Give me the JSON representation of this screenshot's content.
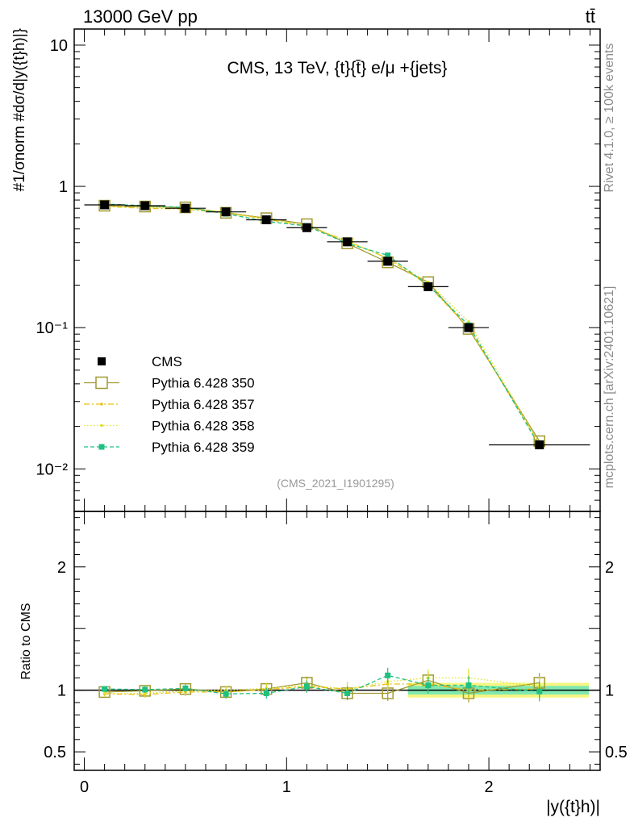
{
  "header": {
    "energy_label": "13000 GeV pp",
    "process_label": "tt̄"
  },
  "side_labels": {
    "rivet": "Rivet 4.1.0, ≥ 100k events",
    "mcplots": "mcplots.cern.ch [arXiv:2401.10621]"
  },
  "colors": {
    "data": "#000000",
    "p350": "#a09a30",
    "p357": "#e8c010",
    "p358": "#e0e020",
    "p359": "#20c080",
    "band_yellow": "#f6f680",
    "band_green": "#80e8b0"
  },
  "chart_data": [
    {
      "type": "scatter",
      "panel": "main",
      "title": "CMS, 13 TeV, {t}{t̄} e/μ +{jets}",
      "watermark": "(CMS_2021_I1901295)",
      "ylabel": "#1/σnorm #dσ/d|y({t}h)|}",
      "xlim": [
        -0.05,
        2.55
      ],
      "ylim": [
        0.005,
        13
      ],
      "yscale": "log",
      "y_ticks": [
        {
          "value": 0.01,
          "label": "10⁻²"
        },
        {
          "value": 0.1,
          "label": "10⁻¹"
        },
        {
          "value": 1,
          "label": "1"
        },
        {
          "value": 10,
          "label": "10"
        }
      ],
      "x": [
        0.1,
        0.3,
        0.5,
        0.7,
        0.9,
        1.1,
        1.3,
        1.5,
        1.7,
        1.9,
        2.25
      ],
      "x_halfwidth": [
        0.1,
        0.1,
        0.1,
        0.1,
        0.1,
        0.1,
        0.1,
        0.1,
        0.1,
        0.1,
        0.25
      ],
      "series": [
        {
          "name": "CMS",
          "key": "data",
          "style": "data",
          "values": [
            0.74,
            0.73,
            0.7,
            0.66,
            0.58,
            0.51,
            0.405,
            0.295,
            0.195,
            0.1,
            0.0148
          ]
        },
        {
          "name": "Pythia 6.428 350",
          "key": "p350",
          "style": "open-square",
          "values": [
            0.73,
            0.72,
            0.71,
            0.65,
            0.595,
            0.54,
            0.395,
            0.29,
            0.21,
            0.098,
            0.0157
          ]
        },
        {
          "name": "Pythia 6.428 357",
          "key": "p357",
          "style": "dashdot",
          "values": [
            0.72,
            0.7,
            0.69,
            0.65,
            0.585,
            0.525,
            0.41,
            0.31,
            0.2,
            0.1,
            0.015
          ]
        },
        {
          "name": "Pythia 6.428 358",
          "key": "p358",
          "style": "dotted",
          "values": [
            0.72,
            0.71,
            0.7,
            0.66,
            0.59,
            0.53,
            0.41,
            0.31,
            0.21,
            0.11,
            0.015
          ]
        },
        {
          "name": "Pythia 6.428 359",
          "key": "p359",
          "style": "dashed",
          "values": [
            0.75,
            0.73,
            0.71,
            0.64,
            0.565,
            0.525,
            0.395,
            0.325,
            0.2,
            0.104,
            0.0145
          ]
        }
      ]
    },
    {
      "type": "scatter",
      "panel": "ratio",
      "ylabel": "Ratio to CMS",
      "xlabel": "|y({t}h)|",
      "xlim": [
        -0.05,
        2.55
      ],
      "ylim": [
        0.35,
        2.45
      ],
      "x_ticks": [
        {
          "value": 0,
          "label": "0"
        },
        {
          "value": 1,
          "label": "1"
        },
        {
          "value": 2,
          "label": "2"
        }
      ],
      "y_ticks": [
        {
          "value": 0.5,
          "label": "0.5"
        },
        {
          "value": 1,
          "label": "1"
        },
        {
          "value": 2,
          "label": "2"
        }
      ],
      "band_from_x": 1.6,
      "series": [
        {
          "name": "Pythia 6.428 350",
          "key": "p350",
          "style": "open-square",
          "values": [
            0.985,
            0.995,
            1.01,
            0.985,
            1.01,
            1.06,
            0.975,
            0.975,
            1.08,
            0.975,
            1.06
          ]
        },
        {
          "name": "Pythia 6.428 357",
          "key": "p357",
          "style": "dashdot",
          "values": [
            0.97,
            0.965,
            0.985,
            0.985,
            1.005,
            1.03,
            1.01,
            1.05,
            1.05,
            1.0,
            1.01
          ]
        },
        {
          "name": "Pythia 6.428 358",
          "key": "p358",
          "style": "dotted",
          "values": [
            0.975,
            0.975,
            0.995,
            1.0,
            1.015,
            1.04,
            1.01,
            1.07,
            1.1,
            1.1,
            1.03
          ]
        },
        {
          "name": "Pythia 6.428 359",
          "key": "p359",
          "style": "dashed",
          "values": [
            1.01,
            1.005,
            1.015,
            0.97,
            0.975,
            1.03,
            0.975,
            1.12,
            1.04,
            1.04,
            0.99
          ]
        }
      ]
    }
  ]
}
